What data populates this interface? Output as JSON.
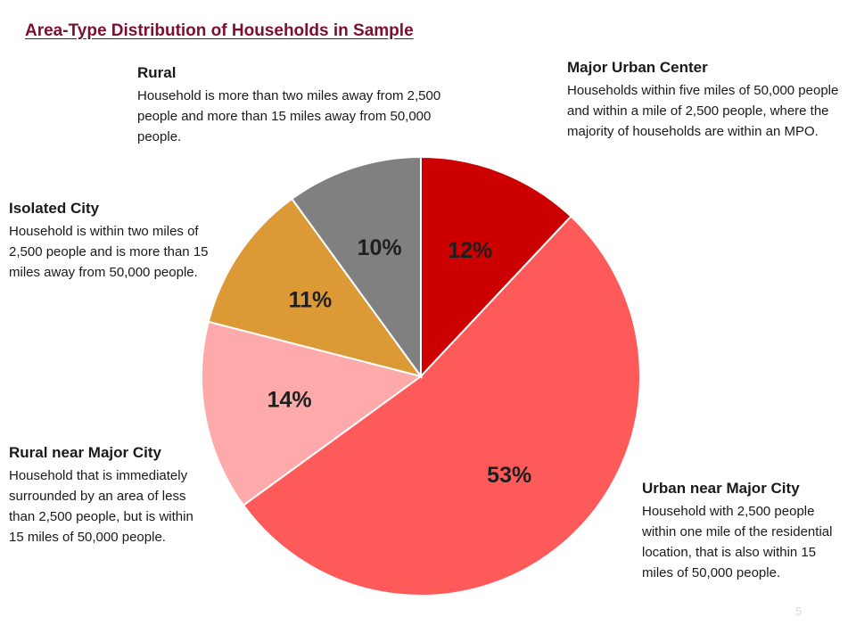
{
  "slide": {
    "title": "Area-Type Distribution of Households in Sample",
    "page_number": "5"
  },
  "chart_data": {
    "type": "pie",
    "title": "Area-Type Distribution of Households in Sample",
    "slices": [
      {
        "name": "Major Urban Center",
        "value": 12,
        "label": "12%",
        "color": "#cc0000",
        "description": "Households within five miles of 50,000 people and within a mile of 2,500 people, where the majority of households are within an MPO."
      },
      {
        "name": "Urban near Major City",
        "value": 53,
        "label": "53%",
        "color": "#ff5a5a",
        "description": "Household with 2,500 people within one mile of the residential location, that is also within 15 miles of 50,000 people."
      },
      {
        "name": "Rural near Major City",
        "value": 14,
        "label": "14%",
        "color": "#ffaaaa",
        "description": "Household that is immediately surrounded by an area of less than 2,500 people, but is within 15 miles of 50,000 people."
      },
      {
        "name": "Isolated City",
        "value": 11,
        "label": "11%",
        "color": "#dc9a36",
        "description": "Household is within two miles of 2,500 people and is more than 15 miles away from 50,000 people."
      },
      {
        "name": "Rural",
        "value": 10,
        "label": "10%",
        "color": "#808080",
        "description": "Household is more than two miles away from 2,500 people and more than 15 miles away from 50,000 people."
      }
    ]
  }
}
